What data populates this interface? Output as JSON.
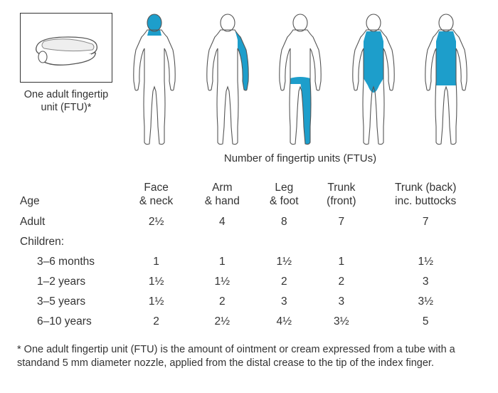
{
  "colors": {
    "highlight": "#1d9ecb",
    "outline": "#555555",
    "text": "#333333",
    "frame": "#333333",
    "background": "#ffffff"
  },
  "ftu": {
    "caption_line1": "One adult fingertip",
    "caption_line2": "unit (FTU)*"
  },
  "figures_caption": "Number of fingertip units (FTUs)",
  "table": {
    "age_header": "Age",
    "columns": [
      {
        "line1": "Face",
        "line2": "& neck"
      },
      {
        "line1": "Arm",
        "line2": "& hand"
      },
      {
        "line1": "Leg",
        "line2": "& foot"
      },
      {
        "line1": "Trunk",
        "line2": "(front)"
      },
      {
        "line1": "Trunk (back)",
        "line2": "inc. buttocks"
      }
    ],
    "rows": [
      {
        "label": "Adult",
        "indent": false,
        "values": [
          "2½",
          "4",
          "8",
          "7",
          "7"
        ]
      },
      {
        "label": "Children:",
        "indent": false,
        "values": [
          "",
          "",
          "",
          "",
          ""
        ]
      },
      {
        "label": "3–6 months",
        "indent": true,
        "values": [
          "1",
          "1",
          "1½",
          "1",
          "1½"
        ]
      },
      {
        "label": "1–2 years",
        "indent": true,
        "values": [
          "1½",
          "1½",
          "2",
          "2",
          "3"
        ]
      },
      {
        "label": "3–5 years",
        "indent": true,
        "values": [
          "1½",
          "2",
          "3",
          "3",
          "3½"
        ]
      },
      {
        "label": "6–10 years",
        "indent": true,
        "values": [
          "2",
          "2½",
          "4½",
          "3½",
          "5"
        ]
      }
    ]
  },
  "footnote": "* One adult fingertip unit (FTU) is the amount of ointment or cream expressed from a tube with a standand 5 mm diameter nozzle, applied from the distal crease to the tip of the index finger.",
  "figure_svg": {
    "width": 88,
    "height": 190,
    "stroke_width": 1.1
  }
}
